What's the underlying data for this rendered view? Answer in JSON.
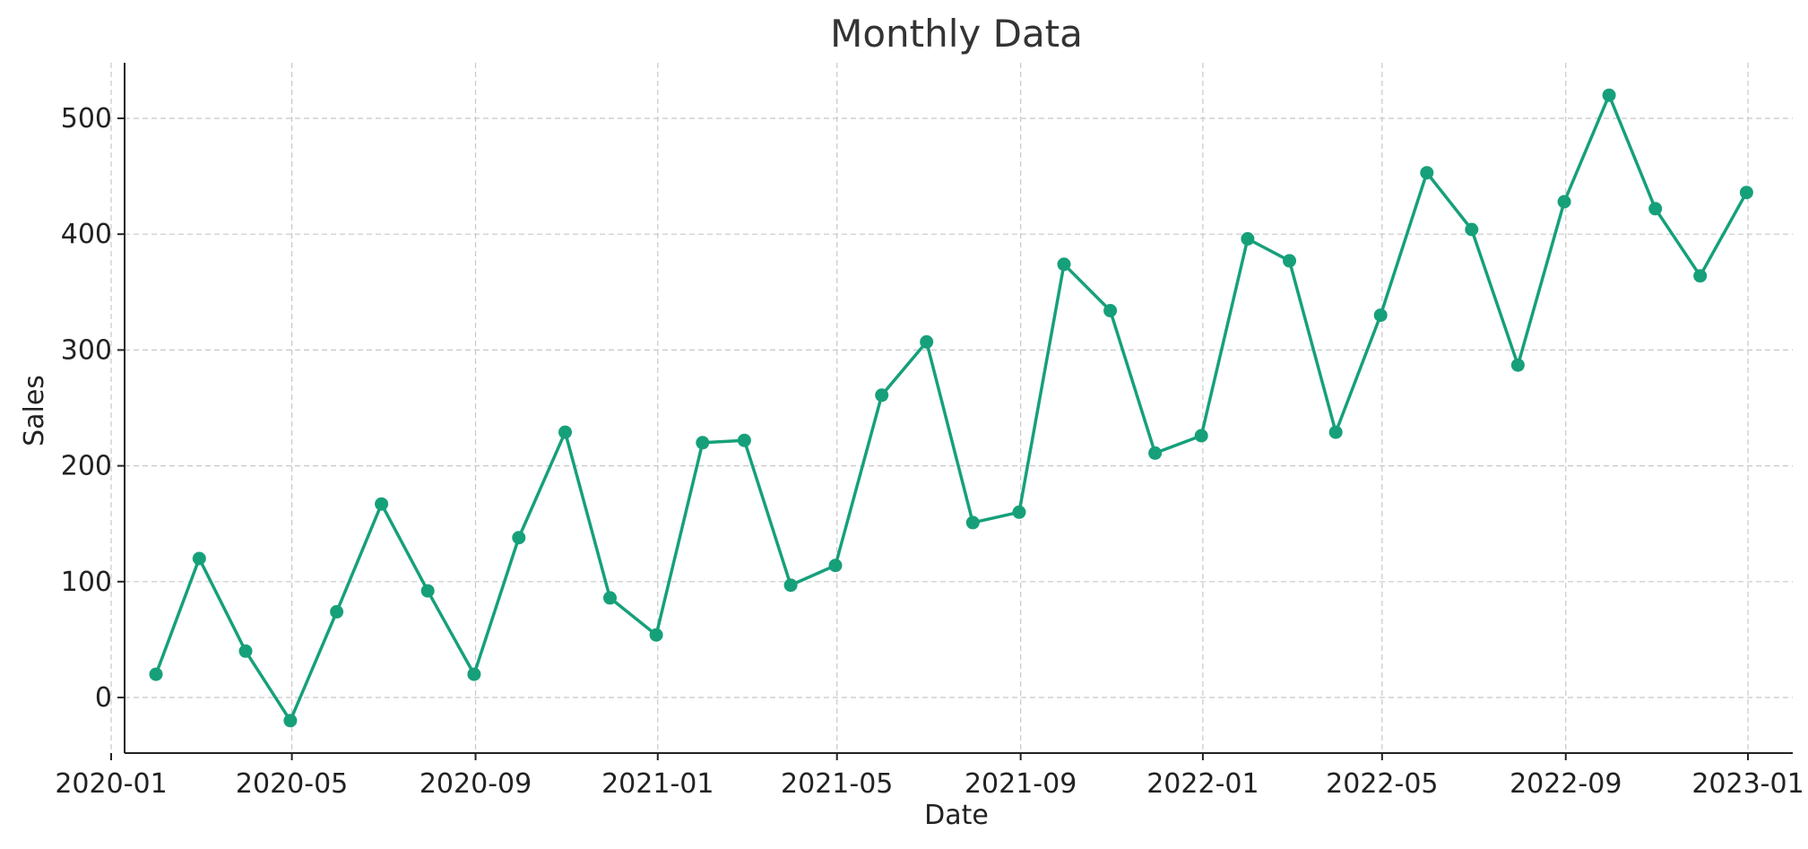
{
  "chart_data": {
    "type": "line",
    "title": "Monthly Data",
    "xlabel": "Date",
    "ylabel": "Sales",
    "x_tick_labels": [
      "2020-01",
      "2020-05",
      "2020-09",
      "2021-01",
      "2021-05",
      "2021-09",
      "2022-01",
      "2022-05",
      "2022-09",
      "2023-01"
    ],
    "y_ticks": [
      0,
      100,
      200,
      300,
      400,
      500
    ],
    "ylim": [
      -48,
      548
    ],
    "xlim": [
      "2020-01-10",
      "2023-01-31"
    ],
    "grid": true,
    "color": "#16a07a",
    "series": [
      {
        "x": [
          "2020-01-31",
          "2020-02-29",
          "2020-03-31",
          "2020-04-30",
          "2020-05-31",
          "2020-06-30",
          "2020-07-31",
          "2020-08-31",
          "2020-09-30",
          "2020-10-31",
          "2020-11-30",
          "2020-12-31",
          "2021-01-31",
          "2021-02-28",
          "2021-03-31",
          "2021-04-30",
          "2021-05-31",
          "2021-06-30",
          "2021-07-31",
          "2021-08-31",
          "2021-09-30",
          "2021-10-31",
          "2021-11-30",
          "2021-12-31",
          "2022-01-31",
          "2022-02-28",
          "2022-03-31",
          "2022-04-30",
          "2022-05-31",
          "2022-06-30",
          "2022-07-31",
          "2022-08-31",
          "2022-09-30",
          "2022-10-31",
          "2022-11-30",
          "2022-12-31"
        ],
        "values": [
          20,
          120,
          40,
          -20,
          74,
          167,
          92,
          20,
          138,
          229,
          86,
          54,
          220,
          222,
          97,
          114,
          261,
          307,
          151,
          160,
          374,
          334,
          211,
          226,
          396,
          377,
          229,
          330,
          453,
          404,
          287,
          428,
          520,
          422,
          364,
          436
        ]
      }
    ]
  }
}
